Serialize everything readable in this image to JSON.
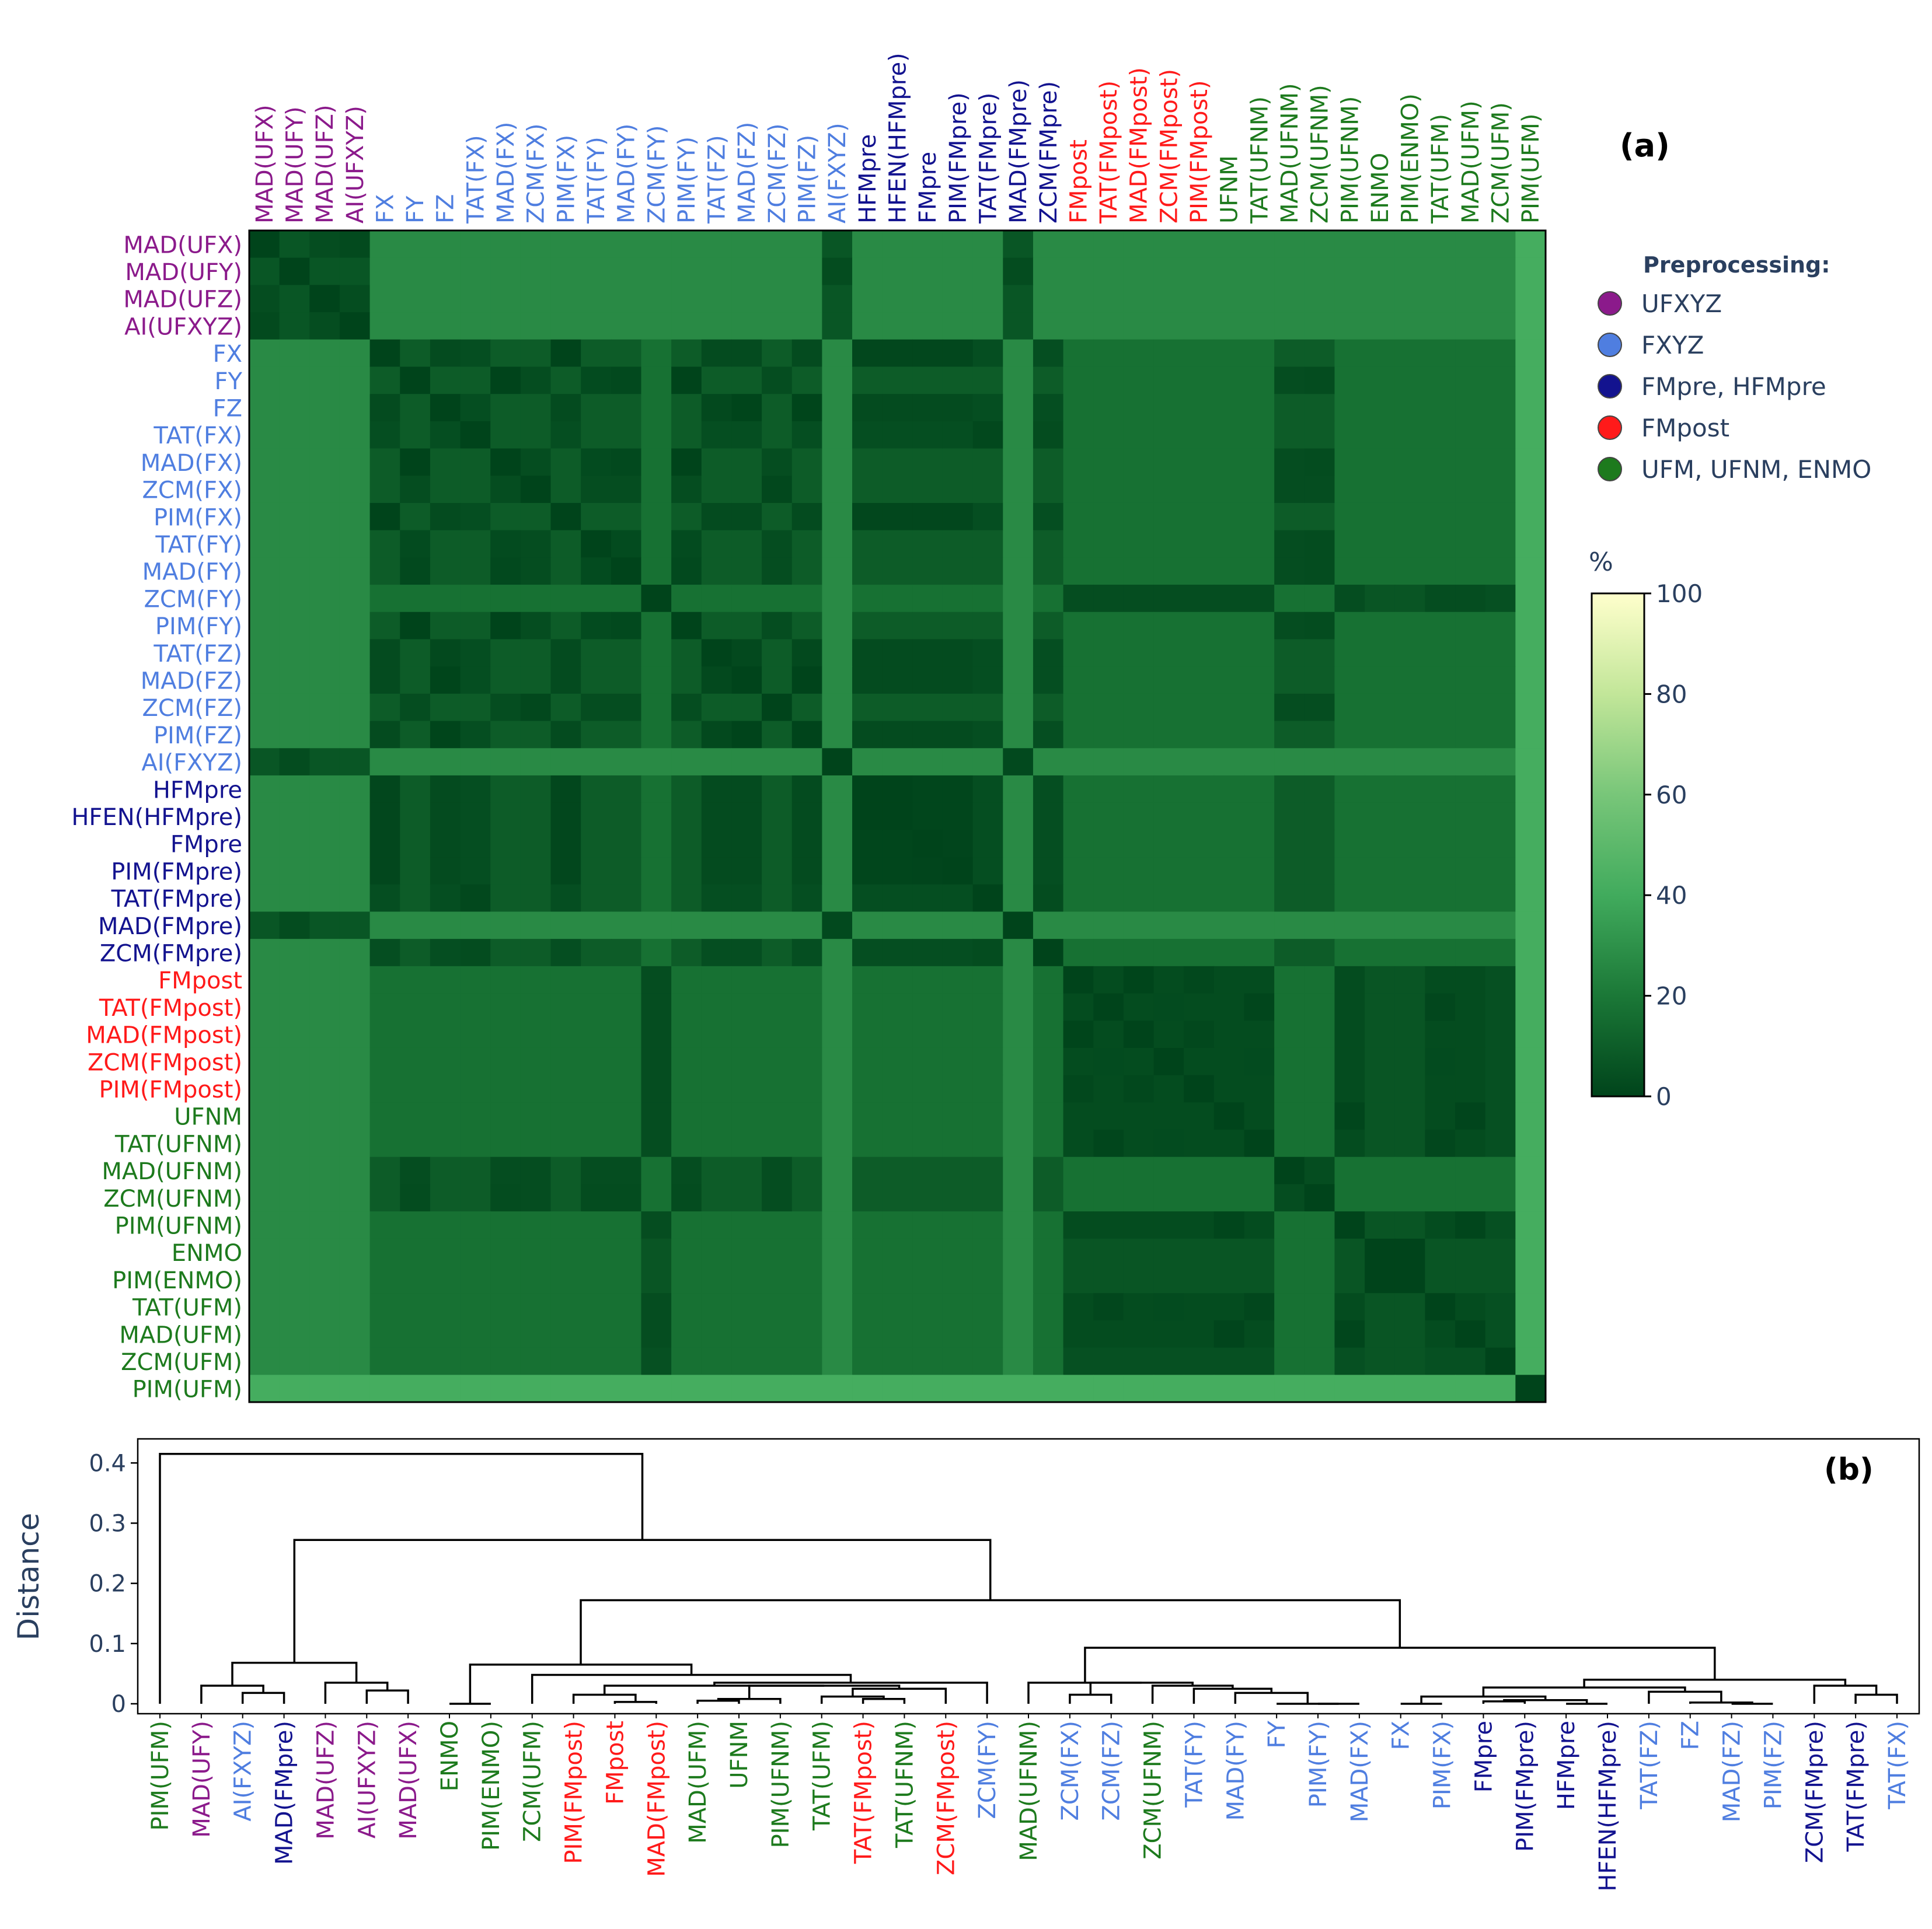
{
  "colors": {
    "UFXYZ": "#8b1a8b",
    "FXYZ": "#4f7ee0",
    "FMpre, HFMpre": "#13138f",
    "FMpost": "#ff1a1a",
    "UFM, UFNM, ENMO": "#1d7a1d"
  },
  "chart_data": [
    {
      "type": "heatmap",
      "panel_label": "(a)",
      "labels": [
        "MAD(UFX)",
        "MAD(UFY)",
        "MAD(UFZ)",
        "AI(UFXYZ)",
        "FX",
        "FY",
        "FZ",
        "TAT(FX)",
        "MAD(FX)",
        "ZCM(FX)",
        "PIM(FX)",
        "TAT(FY)",
        "MAD(FY)",
        "ZCM(FY)",
        "PIM(FY)",
        "TAT(FZ)",
        "MAD(FZ)",
        "ZCM(FZ)",
        "PIM(FZ)",
        "AI(FXYZ)",
        "HFMpre",
        "HFEN(HFMpre)",
        "FMpre",
        "PIM(FMpre)",
        "TAT(FMpre)",
        "MAD(FMpre)",
        "ZCM(FMpre)",
        "FMpost",
        "TAT(FMpost)",
        "MAD(FMpost)",
        "ZCM(FMpost)",
        "PIM(FMpost)",
        "UFNM",
        "TAT(UFNM)",
        "MAD(UFNM)",
        "ZCM(UFNM)",
        "PIM(UFNM)",
        "ENMO",
        "PIM(ENMO)",
        "TAT(UFM)",
        "MAD(UFM)",
        "ZCM(UFM)",
        "PIM(UFM)"
      ],
      "label_groups": [
        "UFXYZ",
        "UFXYZ",
        "UFXYZ",
        "UFXYZ",
        "FXYZ",
        "FXYZ",
        "FXYZ",
        "FXYZ",
        "FXYZ",
        "FXYZ",
        "FXYZ",
        "FXYZ",
        "FXYZ",
        "FXYZ",
        "FXYZ",
        "FXYZ",
        "FXYZ",
        "FXYZ",
        "FXYZ",
        "FXYZ",
        "FMpre, HFMpre",
        "FMpre, HFMpre",
        "FMpre, HFMpre",
        "FMpre, HFMpre",
        "FMpre, HFMpre",
        "FMpre, HFMpre",
        "FMpre, HFMpre",
        "FMpost",
        "FMpost",
        "FMpost",
        "FMpost",
        "FMpost",
        "UFM, UFNM, ENMO",
        "UFM, UFNM, ENMO",
        "UFM, UFNM, ENMO",
        "UFM, UFNM, ENMO",
        "UFM, UFNM, ENMO",
        "UFM, UFNM, ENMO",
        "UFM, UFNM, ENMO",
        "UFM, UFNM, ENMO",
        "UFM, UFNM, ENMO",
        "UFM, UFNM, ENMO",
        "UFM, UFNM, ENMO"
      ],
      "value_model": "distance matrix in % (0 = identical), approximated from the dendrogram in panel (b); cell value = cophenetic distance x 100",
      "colorbar": {
        "title": "%",
        "min": 0,
        "max": 100,
        "ticks": [
          0,
          20,
          40,
          60,
          80,
          100
        ],
        "colormap": [
          "#00441b",
          "#1b7837",
          "#41ab5d",
          "#78c679",
          "#c2e699",
          "#ffffcc"
        ]
      },
      "legend": {
        "title": "Preprocessing:",
        "placement": "right",
        "entries": [
          "UFXYZ",
          "FXYZ",
          "FMpre, HFMpre",
          "FMpost",
          "UFM, UFNM, ENMO"
        ]
      }
    },
    {
      "type": "dendrogram",
      "panel_label": "(b)",
      "ylabel": "Distance",
      "ylim": [
        0,
        0.44
      ],
      "yticks": [
        0,
        0.1,
        0.2,
        0.3,
        0.4
      ],
      "leaves": [
        "PIM(UFM)",
        "MAD(UFY)",
        "AI(FXYZ)",
        "MAD(FMpre)",
        "MAD(UFZ)",
        "AI(UFXYZ)",
        "MAD(UFX)",
        "ENMO",
        "PIM(ENMO)",
        "ZCM(UFM)",
        "PIM(FMpost)",
        "FMpost",
        "MAD(FMpost)",
        "MAD(UFM)",
        "UFNM",
        "PIM(UFNM)",
        "TAT(UFM)",
        "TAT(FMpost)",
        "TAT(UFNM)",
        "ZCM(FMpost)",
        "ZCM(FY)",
        "MAD(UFNM)",
        "ZCM(FX)",
        "ZCM(FZ)",
        "ZCM(UFNM)",
        "TAT(FY)",
        "MAD(FY)",
        "FY",
        "PIM(FY)",
        "MAD(FX)",
        "FX",
        "PIM(FX)",
        "FMpre",
        "PIM(FMpre)",
        "HFMpre",
        "HFEN(HFMpre)",
        "TAT(FZ)",
        "FZ",
        "MAD(FZ)",
        "PIM(FZ)",
        "ZCM(FMpre)",
        "TAT(FMpre)",
        "TAT(FX)"
      ],
      "leaf_groups": [
        "UFM, UFNM, ENMO",
        "UFXYZ",
        "FXYZ",
        "FMpre, HFMpre",
        "UFXYZ",
        "UFXYZ",
        "UFXYZ",
        "UFM, UFNM, ENMO",
        "UFM, UFNM, ENMO",
        "UFM, UFNM, ENMO",
        "FMpost",
        "FMpost",
        "FMpost",
        "UFM, UFNM, ENMO",
        "UFM, UFNM, ENMO",
        "UFM, UFNM, ENMO",
        "UFM, UFNM, ENMO",
        "FMpost",
        "UFM, UFNM, ENMO",
        "FMpost",
        "FXYZ",
        "UFM, UFNM, ENMO",
        "FXYZ",
        "FXYZ",
        "UFM, UFNM, ENMO",
        "FXYZ",
        "FXYZ",
        "FXYZ",
        "FXYZ",
        "FXYZ",
        "FXYZ",
        "FXYZ",
        "FMpre, HFMpre",
        "FMpre, HFMpre",
        "FMpre, HFMpre",
        "FMpre, HFMpre",
        "FXYZ",
        "FXYZ",
        "FXYZ",
        "FXYZ",
        "FMpre, HFMpre",
        "FMpre, HFMpre",
        "FXYZ"
      ],
      "merges": [
        [
          1,
          "PIM(FY)",
          "MAD(FX)",
          0
        ],
        [
          2,
          "FX",
          "PIM(FX)",
          0
        ],
        [
          3,
          "FMpre",
          "PIM(FMpre)",
          0.004
        ],
        [
          4,
          "HFMpre",
          "HFEN(HFMpre)",
          0
        ],
        [
          5,
          "m3",
          "m4",
          0.006
        ],
        [
          6,
          "m2",
          "m5",
          0.012
        ],
        [
          7,
          "MAD(FZ)",
          "PIM(FZ)",
          0
        ],
        [
          8,
          "FZ",
          "m7",
          0.002
        ],
        [
          9,
          "TAT(FZ)",
          "m8",
          0.02
        ],
        [
          10,
          "m6",
          "m9",
          0.027
        ],
        [
          11,
          "TAT(FMpre)",
          "TAT(FX)",
          0.015
        ],
        [
          12,
          "ZCM(FMpre)",
          "m11",
          0.03
        ],
        [
          13,
          "m10",
          "m12",
          0.04
        ],
        [
          14,
          "FY",
          "m1",
          0
        ],
        [
          15,
          "MAD(FY)",
          "m14",
          0.018
        ],
        [
          16,
          "TAT(FY)",
          "m15",
          0.025
        ],
        [
          17,
          "ZCM(UFNM)",
          "m16",
          0.03
        ],
        [
          18,
          "ZCM(FX)",
          "ZCM(FZ)",
          0.015
        ],
        [
          19,
          "m18",
          "m17",
          0.035
        ],
        [
          20,
          "MAD(UFNM)",
          "m19",
          0.035
        ],
        [
          21,
          "m20",
          "m13",
          0.093
        ],
        [
          22,
          "MAD(UFM)",
          "UFNM",
          0.005
        ],
        [
          23,
          "m22",
          "PIM(UFNM)",
          0.008
        ],
        [
          24,
          "TAT(FMpost)",
          "TAT(UFNM)",
          0.008
        ],
        [
          25,
          "TAT(UFM)",
          "m24",
          0.012
        ],
        [
          26,
          "m25",
          "ZCM(FMpost)",
          0.025
        ],
        [
          27,
          "m23",
          "m26",
          0.03
        ],
        [
          28,
          "FMpost",
          "MAD(FMpost)",
          0.003
        ],
        [
          29,
          "PIM(FMpost)",
          "m28",
          0.015
        ],
        [
          30,
          "m29",
          "m27",
          0.03
        ],
        [
          31,
          "m30",
          "ZCM(FY)",
          0.035
        ],
        [
          32,
          "ZCM(UFM)",
          "m31",
          0.048
        ],
        [
          33,
          "ENMO",
          "PIM(ENMO)",
          0
        ],
        [
          34,
          "m33",
          "m32",
          0.065
        ],
        [
          35,
          "m34",
          "m21",
          0.172
        ],
        [
          36,
          "AI(FXYZ)",
          "MAD(FMpre)",
          0.018
        ],
        [
          37,
          "MAD(UFY)",
          "m36",
          0.03
        ],
        [
          38,
          "MAD(UFX)",
          "AI(UFXYZ)",
          0.022
        ],
        [
          39,
          "MAD(UFZ)",
          "m38",
          0.035
        ],
        [
          40,
          "m37",
          "m39",
          0.068
        ],
        [
          41,
          "m40",
          "m35",
          0.272
        ],
        [
          42,
          "PIM(UFM)",
          "m41",
          0.415
        ]
      ]
    }
  ]
}
